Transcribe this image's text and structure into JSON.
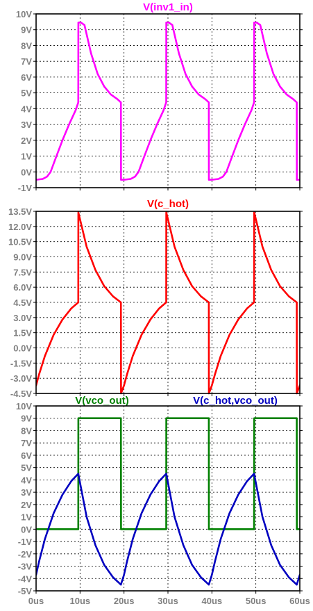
{
  "chart_data": [
    {
      "type": "line",
      "title": "",
      "xlabel": "",
      "ylabel": "",
      "xlim": [
        0,
        60
      ],
      "ylim": [
        -1,
        10
      ],
      "grid": true,
      "xticks": [
        0,
        10,
        20,
        30,
        40,
        50,
        60
      ],
      "yticks": [
        10,
        9,
        8,
        7,
        6,
        5,
        4,
        3,
        2,
        1,
        0,
        -1
      ],
      "ytick_labels": [
        "10V",
        "9V",
        "8V",
        "7V",
        "6V",
        "5V",
        "4V",
        "3V",
        "2V",
        "1V",
        "0V",
        "-1V"
      ],
      "series": [
        {
          "name": "V(inv1_in)",
          "color": "#ff00ff",
          "x": [
            0.0,
            1.5,
            2.5,
            3.3,
            4.5,
            6.0,
            7.5,
            9.0,
            9.6,
            9.62,
            9.9,
            10.2,
            11.0,
            12.5,
            14.0,
            15.5,
            17.0,
            18.5,
            19.3,
            19.32,
            20.0,
            21.5,
            22.5,
            23.3,
            24.5,
            26.0,
            27.5,
            29.0,
            29.6,
            29.62,
            29.9,
            30.2,
            31.0,
            32.5,
            34.0,
            35.5,
            37.0,
            38.5,
            39.3,
            39.32,
            40.0,
            41.5,
            42.5,
            43.3,
            44.5,
            46.0,
            47.5,
            49.0,
            49.6,
            49.62,
            49.9,
            50.2,
            51.0,
            52.5,
            54.0,
            55.5,
            57.0,
            58.5,
            59.3,
            59.32,
            60.0
          ],
          "y": [
            -0.5,
            -0.45,
            -0.3,
            0.0,
            0.9,
            2.0,
            3.0,
            3.9,
            4.4,
            9.45,
            9.45,
            9.45,
            9.3,
            7.5,
            6.2,
            5.4,
            4.9,
            4.6,
            4.4,
            -0.5,
            -0.5,
            -0.45,
            -0.3,
            0.0,
            0.9,
            2.0,
            3.0,
            3.9,
            4.4,
            9.45,
            9.45,
            9.45,
            9.3,
            7.5,
            6.2,
            5.4,
            4.9,
            4.6,
            4.4,
            -0.5,
            -0.5,
            -0.45,
            -0.3,
            0.0,
            0.9,
            2.0,
            3.0,
            3.9,
            4.4,
            9.45,
            9.45,
            9.45,
            9.3,
            7.5,
            6.2,
            5.4,
            4.9,
            4.6,
            4.4,
            -0.5,
            -0.5
          ]
        }
      ]
    },
    {
      "type": "line",
      "title": "",
      "xlabel": "",
      "ylabel": "",
      "xlim": [
        0,
        60
      ],
      "ylim": [
        -4.5,
        13.5
      ],
      "grid": true,
      "xticks": [
        0,
        10,
        20,
        30,
        40,
        50,
        60
      ],
      "yticks": [
        13.5,
        12.0,
        10.5,
        9.0,
        7.5,
        6.0,
        4.5,
        3.0,
        1.5,
        0.0,
        -1.5,
        -3.0,
        -4.5
      ],
      "ytick_labels": [
        "13.5V",
        "12.0V",
        "10.5V",
        "9.0V",
        "7.5V",
        "6.0V",
        "4.5V",
        "3.0V",
        "1.5V",
        "0.0V",
        "-1.5V",
        "-3.0V",
        "-4.5V"
      ],
      "series": [
        {
          "name": "V(c_hot)",
          "color": "#ff0000",
          "x": [
            0.0,
            0.7,
            2.0,
            4.0,
            6.0,
            8.0,
            9.6,
            9.62,
            11.5,
            13.5,
            15.5,
            17.5,
            19.3,
            19.32,
            20.0,
            20.7,
            22.0,
            24.0,
            26.0,
            28.0,
            29.6,
            29.62,
            31.5,
            33.5,
            35.5,
            37.5,
            39.3,
            39.32,
            40.0,
            40.7,
            42.0,
            44.0,
            46.0,
            48.0,
            49.6,
            49.62,
            51.5,
            53.5,
            55.5,
            57.5,
            59.3,
            59.32,
            60.0
          ],
          "y": [
            -3.7,
            -2.6,
            -0.8,
            1.3,
            2.8,
            3.9,
            4.5,
            13.4,
            10.0,
            7.7,
            6.1,
            5.1,
            4.5,
            -4.5,
            -3.7,
            -2.6,
            -0.8,
            1.3,
            2.8,
            3.9,
            4.5,
            13.4,
            10.0,
            7.7,
            6.1,
            5.1,
            4.5,
            -4.5,
            -3.7,
            -2.6,
            -0.8,
            1.3,
            2.8,
            3.9,
            4.5,
            13.4,
            10.0,
            7.7,
            6.1,
            5.1,
            4.5,
            -4.5,
            -3.7
          ]
        }
      ]
    },
    {
      "type": "line",
      "title": "",
      "xlabel": "",
      "ylabel": "",
      "xlim": [
        0,
        60
      ],
      "ylim": [
        -5,
        10
      ],
      "grid": true,
      "xticks": [
        0,
        10,
        20,
        30,
        40,
        50,
        60
      ],
      "xtick_labels": [
        "0us",
        "10us",
        "20us",
        "30us",
        "40us",
        "50us",
        "60us"
      ],
      "yticks": [
        10,
        9,
        8,
        7,
        6,
        5,
        4,
        3,
        2,
        1,
        0,
        -1,
        -2,
        -3,
        -4,
        -5
      ],
      "ytick_labels": [
        "10V",
        "9V",
        "8V",
        "7V",
        "6V",
        "5V",
        "4V",
        "3V",
        "2V",
        "1V",
        "0V",
        "-1V",
        "-2V",
        "-3V",
        "-4V",
        "-5V"
      ],
      "series": [
        {
          "name": "V(vco_out)",
          "color": "#008000",
          "x": [
            0.0,
            9.6,
            9.62,
            19.3,
            19.32,
            29.6,
            29.62,
            39.3,
            39.32,
            49.6,
            49.62,
            59.3,
            59.32,
            60.0
          ],
          "y": [
            0.0,
            0.0,
            9.0,
            9.0,
            0.0,
            0.0,
            9.0,
            9.0,
            0.0,
            0.0,
            9.0,
            9.0,
            0.0,
            0.0
          ]
        },
        {
          "name": "V(c_hot,vco_out)",
          "color": "#0000c0",
          "x": [
            0.0,
            0.7,
            2.0,
            4.0,
            6.0,
            8.0,
            9.6,
            11.5,
            13.5,
            15.5,
            17.5,
            19.3,
            20.0,
            20.7,
            22.0,
            24.0,
            26.0,
            28.0,
            29.6,
            31.5,
            33.5,
            35.5,
            37.5,
            39.3,
            40.0,
            40.7,
            42.0,
            44.0,
            46.0,
            48.0,
            49.6,
            51.5,
            53.5,
            55.5,
            57.5,
            59.3,
            60.0
          ],
          "y": [
            -3.7,
            -2.6,
            -0.8,
            1.3,
            2.8,
            3.9,
            4.5,
            1.0,
            -1.3,
            -2.9,
            -3.9,
            -4.5,
            -3.7,
            -2.6,
            -0.8,
            1.3,
            2.8,
            3.9,
            4.5,
            1.0,
            -1.3,
            -2.9,
            -3.9,
            -4.5,
            -3.7,
            -2.6,
            -0.8,
            1.3,
            2.8,
            3.9,
            4.5,
            1.0,
            -1.3,
            -2.9,
            -3.9,
            -4.5,
            -3.7
          ]
        }
      ]
    }
  ]
}
